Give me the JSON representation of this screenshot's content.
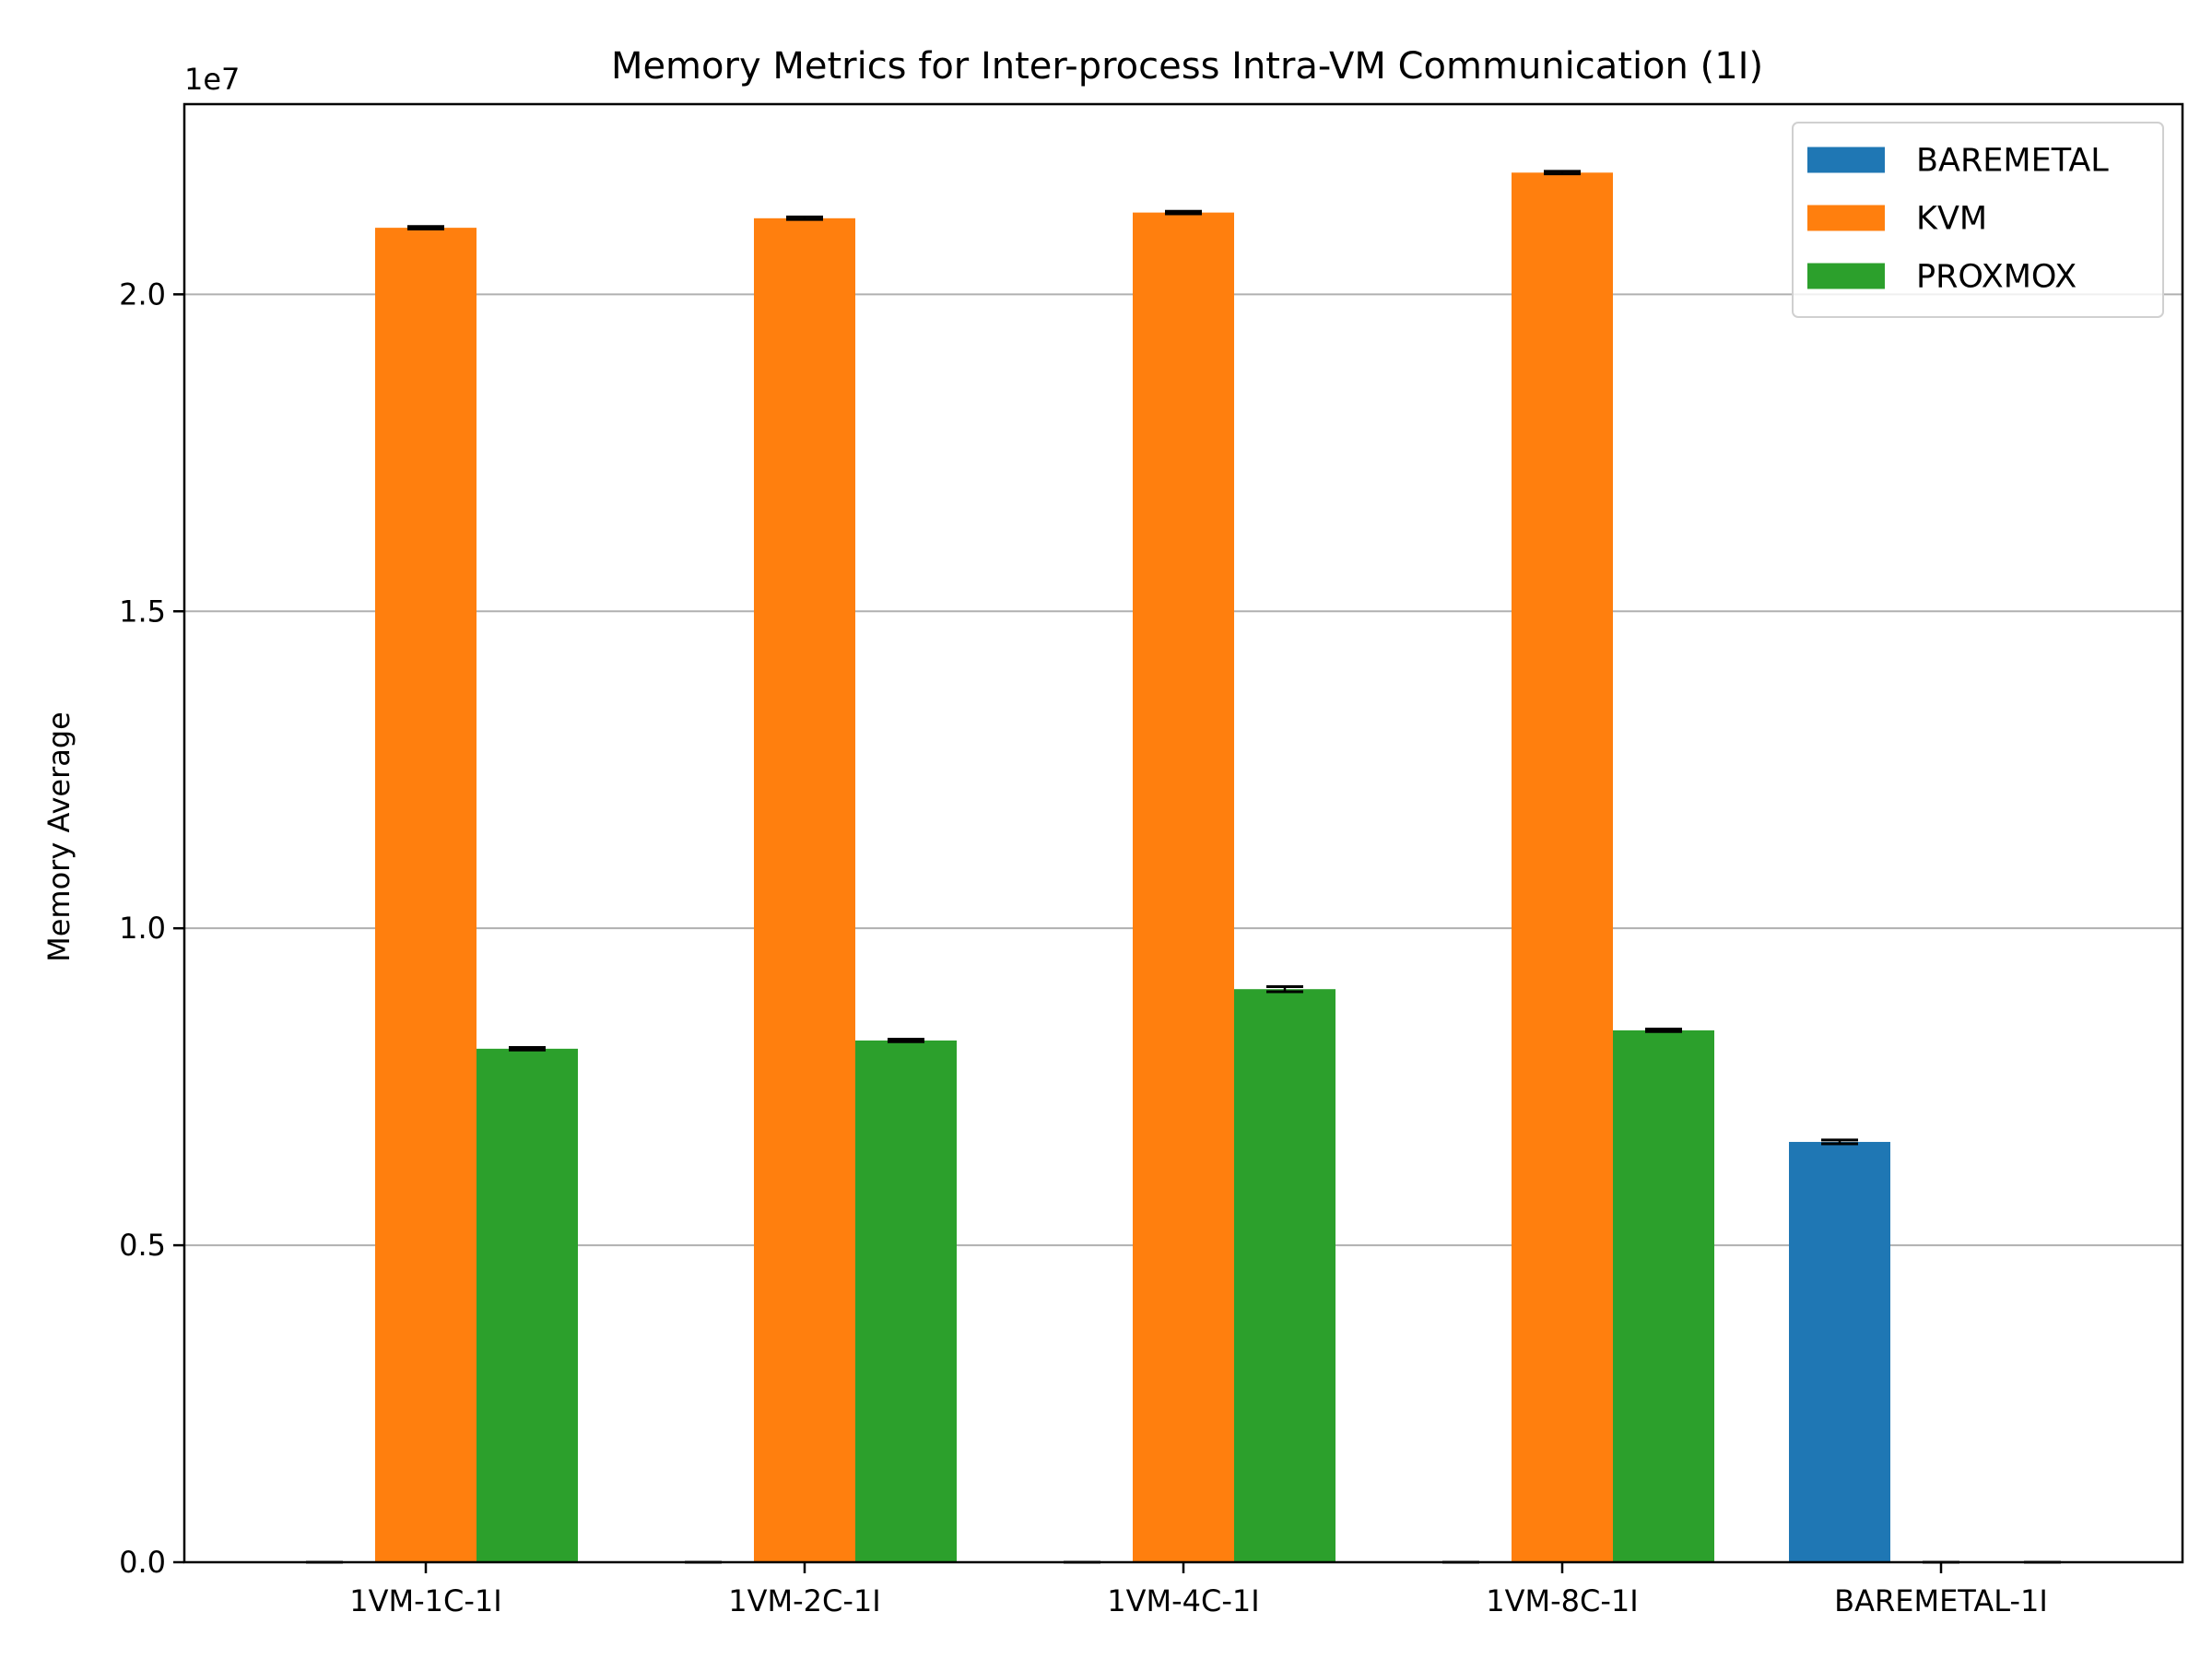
{
  "chart_data": {
    "type": "bar",
    "title": "Memory Metrics for Inter-process Intra-VM Communication (1I)",
    "xlabel": "",
    "ylabel": "Memory Average",
    "offset_label": "1e7",
    "categories": [
      "1VM-1C-1I",
      "1VM-2C-1I",
      "1VM-4C-1I",
      "1VM-8C-1I",
      "BAREMETAL-1I"
    ],
    "series": [
      {
        "name": "BAREMETAL",
        "color": "#1f77b4",
        "values": [
          0,
          0,
          0,
          0,
          6630000
        ],
        "errors": [
          0,
          0,
          0,
          0,
          30000
        ]
      },
      {
        "name": "KVM",
        "color": "#ff7f0e",
        "values": [
          21050000,
          21200000,
          21290000,
          21920000,
          0
        ],
        "errors": [
          20000,
          20000,
          20000,
          20000,
          0
        ]
      },
      {
        "name": "PROXMOX",
        "color": "#2ca02c",
        "values": [
          8100000,
          8230000,
          9040000,
          8390000,
          0
        ],
        "errors": [
          20000,
          20000,
          40000,
          20000,
          0
        ]
      }
    ],
    "ylim": [
      0,
      23000000
    ],
    "yticks": [
      {
        "value": 0,
        "label": "0.0"
      },
      {
        "value": 5000000,
        "label": "0.5"
      },
      {
        "value": 10000000,
        "label": "1.0"
      },
      {
        "value": 15000000,
        "label": "1.5"
      },
      {
        "value": 20000000,
        "label": "2.0"
      }
    ],
    "grid": "y",
    "legend_position": "top-right"
  }
}
